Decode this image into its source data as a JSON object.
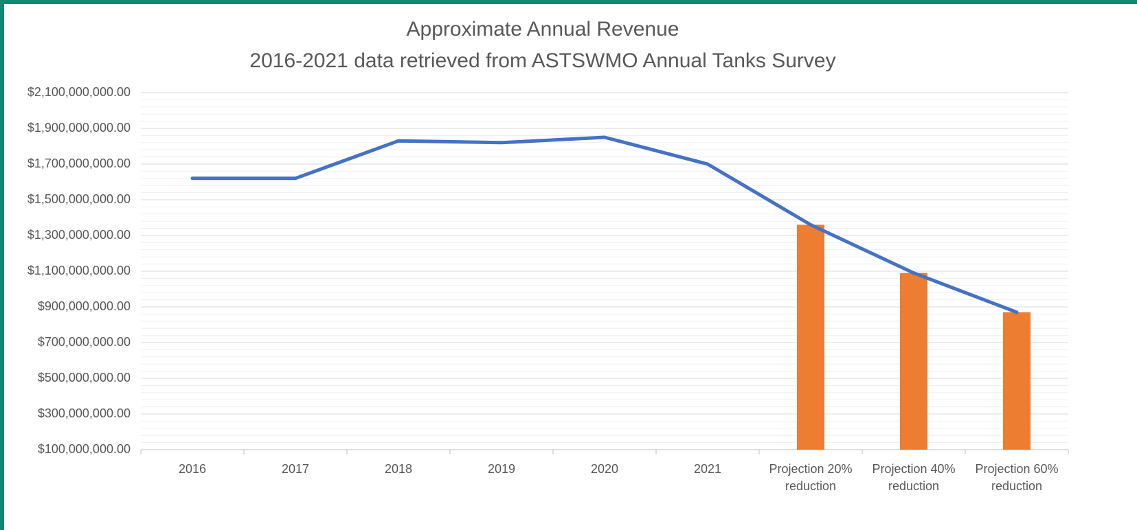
{
  "chart_data": {
    "type": "combo",
    "title": "Approximate Annual Revenue",
    "subtitle": "2016-2021 data retrieved from ASTSWMO Annual Tanks Survey",
    "categories": [
      "2016",
      "2017",
      "2018",
      "2019",
      "2020",
      "2021",
      "Projection 20% reduction",
      "Projection 40% reduction",
      "Projection 60% reduction"
    ],
    "series": [
      {
        "type": "bar",
        "color": "#ed7d31",
        "values": [
          null,
          null,
          null,
          null,
          null,
          null,
          1360000000,
          1090000000,
          870000000
        ]
      },
      {
        "type": "line",
        "color": "#4472c4",
        "values": [
          1620000000,
          1620000000,
          1830000000,
          1820000000,
          1850000000,
          1700000000,
          1360000000,
          1090000000,
          870000000
        ]
      }
    ],
    "ylim": [
      100000000,
      2100000000
    ],
    "yticks": [
      {
        "value": 100000000,
        "label": "$100,000,000.00"
      },
      {
        "value": 300000000,
        "label": "$300,000,000.00"
      },
      {
        "value": 500000000,
        "label": "$500,000,000.00"
      },
      {
        "value": 700000000,
        "label": "$700,000,000.00"
      },
      {
        "value": 900000000,
        "label": "$900,000,000.00"
      },
      {
        "value": 1100000000,
        "label": "$1,100,000,000.00"
      },
      {
        "value": 1300000000,
        "label": "$1,300,000,000.00"
      },
      {
        "value": 1500000000,
        "label": "$1,500,000,000.00"
      },
      {
        "value": 1700000000,
        "label": "$1,700,000,000.00"
      },
      {
        "value": 1900000000,
        "label": "$1,900,000,000.00"
      },
      {
        "value": 2100000000,
        "label": "$2,100,000,000.00"
      }
    ],
    "grid": true
  }
}
